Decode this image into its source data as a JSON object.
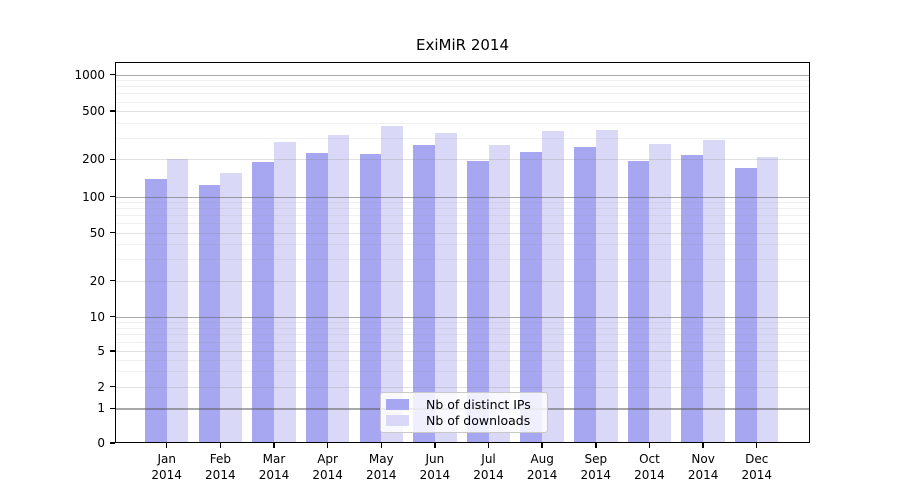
{
  "chart_data": {
    "type": "bar",
    "title": "ExiMiR 2014",
    "yscale": "log",
    "ylim": [
      0,
      1150
    ],
    "yticks": [
      1000,
      500,
      200,
      100,
      50,
      20,
      10,
      5,
      2,
      1,
      0
    ],
    "grid": true,
    "categories": [
      "Jan",
      "Feb",
      "Mar",
      "Apr",
      "May",
      "Jun",
      "Jul",
      "Aug",
      "Sep",
      "Oct",
      "Nov",
      "Dec"
    ],
    "x_tick_label_year": "2014",
    "series": [
      {
        "name": "Nb of distinct IPs",
        "color": "#a6a6f1",
        "values": [
          140,
          125,
          190,
          225,
          220,
          260,
          195,
          230,
          255,
          195,
          215,
          170
        ]
      },
      {
        "name": "Nb of downloads",
        "color": "#d9d9f7",
        "values": [
          200,
          155,
          280,
          320,
          375,
          330,
          260,
          345,
          350,
          265,
          290,
          210
        ]
      }
    ],
    "legend": {
      "position": "inside-bottom-center"
    }
  },
  "colors": {
    "major_gridline": "#b0b0b0",
    "mid_gridline": "#e2e2e2",
    "minor_gridline": "#f0f0f0",
    "spine": "#000000",
    "text": "#000000",
    "legend_border": "#c9c9c9"
  }
}
